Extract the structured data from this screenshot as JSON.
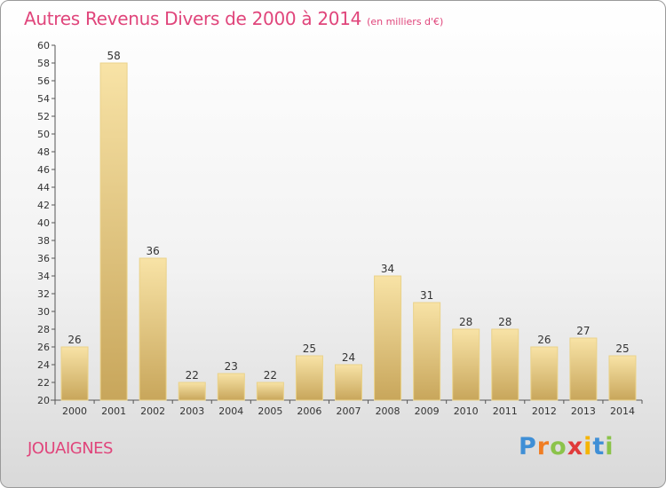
{
  "title": "Autres Revenus Divers de 2000 à 2014",
  "subtitle": "(en milliers d'€)",
  "commune": "JOUAIGNES",
  "logo": {
    "p": "P",
    "r": "r",
    "o": "o",
    "x": "x",
    "i1": "i",
    "t": "t",
    "i2": "i"
  },
  "colors": {
    "title": "#e0457b",
    "bar_light": "#f7e1a3",
    "bar_dark": "#c9a85c",
    "bar_edge": "#e8cf84"
  },
  "chart_data": {
    "type": "bar",
    "categories": [
      "2000",
      "2001",
      "2002",
      "2003",
      "2004",
      "2005",
      "2006",
      "2007",
      "2008",
      "2009",
      "2010",
      "2011",
      "2012",
      "2013",
      "2014"
    ],
    "values": [
      26,
      58,
      36,
      22,
      23,
      22,
      25,
      24,
      34,
      31,
      28,
      28,
      26,
      27,
      25
    ],
    "ylim": [
      20,
      60
    ],
    "ytick_step": 2,
    "grid": false,
    "xlabel": "",
    "ylabel": ""
  }
}
